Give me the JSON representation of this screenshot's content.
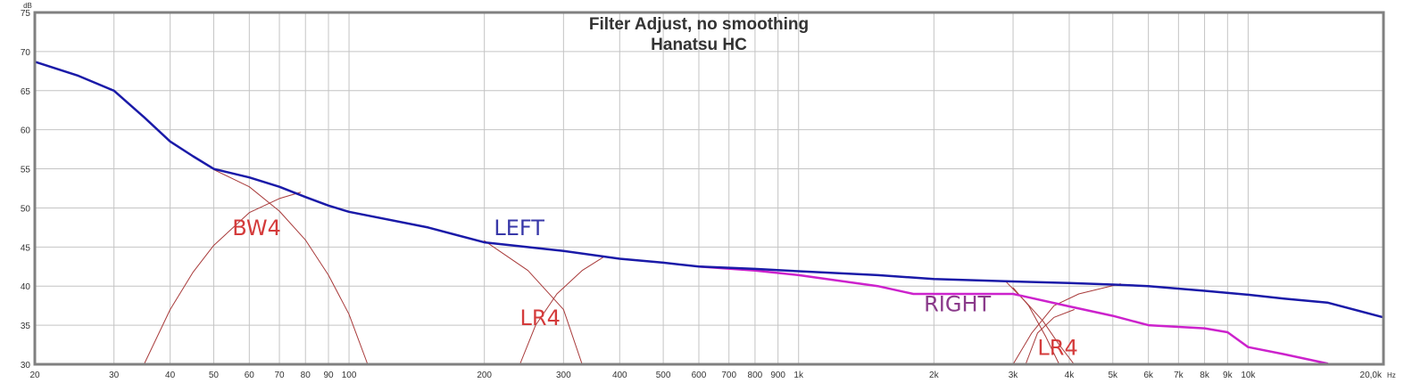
{
  "chart_data": {
    "type": "line",
    "title": "Filter Adjust, no smoothing",
    "subtitle": "Hanatsu HC",
    "ylabel": "dB",
    "x_unit": "Hz",
    "xlim": [
      20,
      20000
    ],
    "ylim": [
      30,
      75
    ],
    "x_scale": "log",
    "grid": true,
    "x_ticks": [
      {
        "value": 20,
        "label": "20"
      },
      {
        "value": 30,
        "label": "30"
      },
      {
        "value": 40,
        "label": "40"
      },
      {
        "value": 50,
        "label": "50"
      },
      {
        "value": 60,
        "label": "60"
      },
      {
        "value": 70,
        "label": "70"
      },
      {
        "value": 80,
        "label": "80"
      },
      {
        "value": 90,
        "label": "90"
      },
      {
        "value": 100,
        "label": "100"
      },
      {
        "value": 200,
        "label": "200"
      },
      {
        "value": 300,
        "label": "300"
      },
      {
        "value": 400,
        "label": "400"
      },
      {
        "value": 500,
        "label": "500"
      },
      {
        "value": 600,
        "label": "600"
      },
      {
        "value": 700,
        "label": "700"
      },
      {
        "value": 800,
        "label": "800"
      },
      {
        "value": 900,
        "label": "900"
      },
      {
        "value": 1000,
        "label": "1k"
      },
      {
        "value": 2000,
        "label": "2k"
      },
      {
        "value": 3000,
        "label": "3k"
      },
      {
        "value": 4000,
        "label": "4k"
      },
      {
        "value": 5000,
        "label": "5k"
      },
      {
        "value": 6000,
        "label": "6k"
      },
      {
        "value": 7000,
        "label": "7k"
      },
      {
        "value": 8000,
        "label": "8k"
      },
      {
        "value": 9000,
        "label": "9k"
      },
      {
        "value": 10000,
        "label": "10k"
      },
      {
        "value": 20000,
        "label": "20,0k"
      }
    ],
    "y_ticks": [
      {
        "value": 30,
        "label": "30"
      },
      {
        "value": 35,
        "label": "35"
      },
      {
        "value": 40,
        "label": "40"
      },
      {
        "value": 45,
        "label": "45"
      },
      {
        "value": 50,
        "label": "50"
      },
      {
        "value": 55,
        "label": "55"
      },
      {
        "value": 60,
        "label": "60"
      },
      {
        "value": 65,
        "label": "65"
      },
      {
        "value": 70,
        "label": "70"
      },
      {
        "value": 75,
        "label": "75"
      }
    ],
    "series": [
      {
        "id": "left",
        "color": "#1a1aa8",
        "x": [
          20,
          25,
          30,
          35,
          40,
          45,
          50,
          60,
          70,
          80,
          90,
          100,
          150,
          200,
          300,
          400,
          500,
          600,
          800,
          1000,
          1500,
          2000,
          3000,
          4000,
          5000,
          6000,
          8000,
          10000,
          12000,
          15000,
          20000
        ],
        "y": [
          68.7,
          66.9,
          65.0,
          61.6,
          58.5,
          56.6,
          55.0,
          53.9,
          52.7,
          51.4,
          50.3,
          49.5,
          47.5,
          45.6,
          44.5,
          43.5,
          43.0,
          42.5,
          42.2,
          41.9,
          41.4,
          40.9,
          40.6,
          40.4,
          40.2,
          40.0,
          39.4,
          38.9,
          38.4,
          37.9,
          36.0
        ]
      },
      {
        "id": "right",
        "color": "#cc22cc",
        "x": [
          600,
          800,
          1000,
          1500,
          1800,
          2000,
          3000,
          4000,
          5000,
          6000,
          8000,
          9000,
          10000,
          12000,
          15000
        ],
        "y": [
          42.5,
          42.0,
          41.4,
          40.0,
          39.0,
          39.0,
          39.0,
          37.4,
          36.2,
          35.0,
          34.6,
          34.1,
          32.2,
          31.3,
          30.1
        ]
      },
      {
        "id": "bw4-lowpass",
        "color": "#a83a3a",
        "x": [
          50,
          60,
          70,
          80,
          90,
          100,
          110
        ],
        "y": [
          54.9,
          52.7,
          49.6,
          45.9,
          41.4,
          36.4,
          30.0
        ]
      },
      {
        "id": "bw4-highpass",
        "color": "#a83a3a",
        "x": [
          35,
          40,
          45,
          50,
          60,
          70,
          78
        ],
        "y": [
          30.0,
          37.0,
          41.8,
          45.2,
          49.4,
          51.2,
          52.0
        ]
      },
      {
        "id": "lr4-lowpass-1",
        "color": "#a83a3a",
        "x": [
          200,
          250,
          300,
          330
        ],
        "y": [
          45.8,
          42.0,
          37.0,
          30.0
        ]
      },
      {
        "id": "lr4-highpass-1",
        "color": "#a83a3a",
        "x": [
          240,
          260,
          290,
          330,
          370
        ],
        "y": [
          30.0,
          35.0,
          39.0,
          42.0,
          43.8
        ]
      },
      {
        "id": "lr4-lowpass-2",
        "color": "#a83a3a",
        "x": [
          2900,
          3200,
          3500,
          3800,
          4100
        ],
        "y": [
          40.5,
          38.0,
          35.5,
          32.5,
          30.0
        ]
      },
      {
        "id": "lr4-highpass-2",
        "color": "#a83a3a",
        "x": [
          3000,
          3300,
          3700,
          4200,
          5200
        ],
        "y": [
          30.0,
          34.0,
          37.5,
          39.0,
          40.3
        ]
      },
      {
        "id": "lr4-lowpass-3",
        "color": "#a83a3a",
        "x": [
          3000,
          3250,
          3550,
          3800
        ],
        "y": [
          39.8,
          37.5,
          33.5,
          30.0
        ]
      },
      {
        "id": "lr4-highpass-3",
        "color": "#a83a3a",
        "x": [
          3200,
          3400,
          3700,
          4100
        ],
        "y": [
          30.0,
          34.0,
          36.0,
          37.0
        ]
      }
    ],
    "annotations": [
      {
        "text": "BW4",
        "x": 55,
        "y": 46.5,
        "color": "#d43b3b"
      },
      {
        "text": "LEFT",
        "x": 210,
        "y": 46.5,
        "color": "#3838a8"
      },
      {
        "text": "LR4",
        "x": 240,
        "y": 35.0,
        "color": "#d43b3b"
      },
      {
        "text": "RIGHT",
        "x": 1900,
        "y": 36.8,
        "color": "#8a3a8a"
      },
      {
        "text": "LR4",
        "x": 3400,
        "y": 31.2,
        "color": "#d43b3b"
      }
    ]
  }
}
